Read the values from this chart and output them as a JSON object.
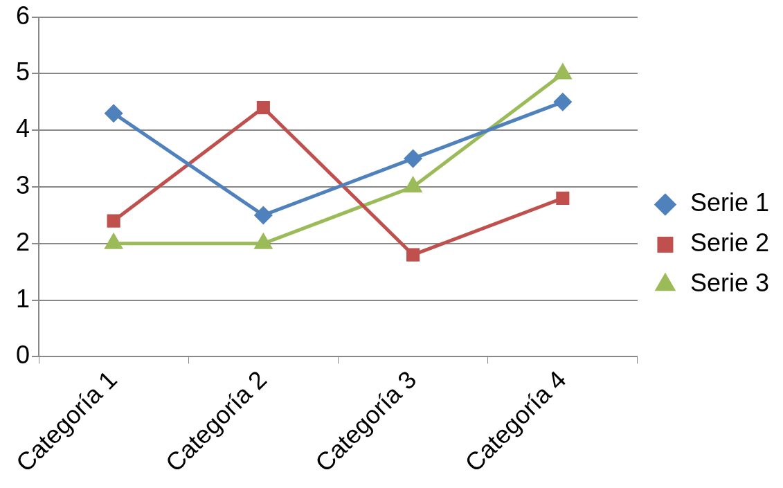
{
  "chart_data": {
    "type": "line",
    "categories": [
      "Categoría 1",
      "Categoría 2",
      "Categoría 3",
      "Categoría 4"
    ],
    "series": [
      {
        "name": "Serie 1",
        "color": "#4f81bd",
        "marker": "diamond",
        "values": [
          4.3,
          2.5,
          3.5,
          4.5
        ]
      },
      {
        "name": "Serie 2",
        "color": "#c0504d",
        "marker": "square",
        "values": [
          2.4,
          4.4,
          1.8,
          2.8
        ]
      },
      {
        "name": "Serie 3",
        "color": "#9bbb59",
        "marker": "triangle",
        "values": [
          2,
          2,
          3,
          5
        ]
      }
    ],
    "ylim": [
      0,
      6
    ],
    "yticks": [
      0,
      1,
      2,
      3,
      4,
      5,
      6
    ],
    "grid": "y",
    "legend": "right",
    "line_style": "solid"
  }
}
